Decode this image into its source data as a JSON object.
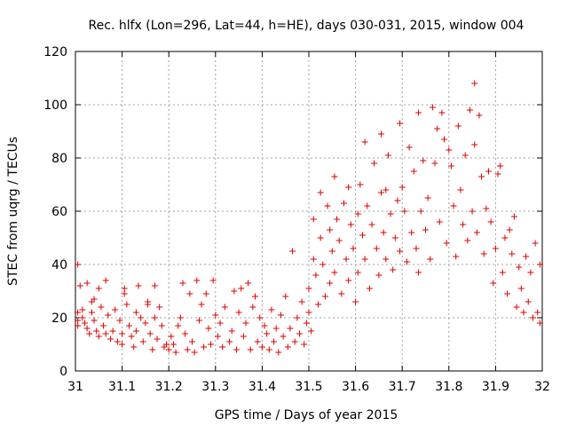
{
  "chart_data": {
    "type": "scatter",
    "title": "Rec. hlfx (Lon=296, Lat=44, h=HE), days 030-031, 2015, window 004",
    "xlabel": "GPS time / Days of year 2015",
    "ylabel": "STEC from uqrg / TECUs",
    "xlim": [
      31,
      32
    ],
    "ylim": [
      0,
      120
    ],
    "xticks": [
      "31",
      "31.1",
      "31.2",
      "31.3",
      "31.4",
      "31.5",
      "31.6",
      "31.7",
      "31.8",
      "31.9",
      "32"
    ],
    "yticks": [
      "0",
      "20",
      "40",
      "60",
      "80",
      "100",
      "120"
    ],
    "grid": true,
    "marker": "plus",
    "color": "#e00000",
    "points": [
      [
        31.005,
        40
      ],
      [
        31.005,
        22
      ],
      [
        31.005,
        19
      ],
      [
        31.005,
        17
      ],
      [
        31.01,
        32
      ],
      [
        31.015,
        23
      ],
      [
        31.015,
        20
      ],
      [
        31.02,
        18
      ],
      [
        31.025,
        33
      ],
      [
        31.025,
        16
      ],
      [
        31.03,
        14
      ],
      [
        31.035,
        26
      ],
      [
        31.035,
        22
      ],
      [
        31.04,
        27
      ],
      [
        31.04,
        19
      ],
      [
        31.045,
        15
      ],
      [
        31.05,
        31
      ],
      [
        31.05,
        13
      ],
      [
        31.055,
        24
      ],
      [
        31.06,
        17
      ],
      [
        31.065,
        34
      ],
      [
        31.065,
        14
      ],
      [
        31.07,
        21
      ],
      [
        31.075,
        12
      ],
      [
        31.08,
        15
      ],
      [
        31.085,
        23
      ],
      [
        31.09,
        11
      ],
      [
        31.095,
        19
      ],
      [
        31.1,
        14
      ],
      [
        31.1,
        10
      ],
      [
        31.105,
        31
      ],
      [
        31.105,
        29
      ],
      [
        31.11,
        25
      ],
      [
        31.115,
        17
      ],
      [
        31.12,
        13
      ],
      [
        31.125,
        9
      ],
      [
        31.13,
        22
      ],
      [
        31.13,
        15
      ],
      [
        31.135,
        32
      ],
      [
        31.14,
        20
      ],
      [
        31.145,
        11
      ],
      [
        31.15,
        18
      ],
      [
        31.155,
        26
      ],
      [
        31.155,
        25
      ],
      [
        31.16,
        14
      ],
      [
        31.165,
        8
      ],
      [
        31.17,
        32
      ],
      [
        31.17,
        20
      ],
      [
        31.175,
        12
      ],
      [
        31.18,
        24
      ],
      [
        31.185,
        17
      ],
      [
        31.19,
        9
      ],
      [
        31.195,
        10
      ],
      [
        31.2,
        8
      ],
      [
        31.205,
        13
      ],
      [
        31.21,
        10
      ],
      [
        31.215,
        7
      ],
      [
        31.22,
        17
      ],
      [
        31.225,
        20
      ],
      [
        31.23,
        33
      ],
      [
        31.235,
        14
      ],
      [
        31.24,
        8
      ],
      [
        31.245,
        29
      ],
      [
        31.25,
        11
      ],
      [
        31.255,
        7
      ],
      [
        31.26,
        34
      ],
      [
        31.265,
        19
      ],
      [
        31.27,
        25
      ],
      [
        31.275,
        9
      ],
      [
        31.28,
        29
      ],
      [
        31.285,
        16
      ],
      [
        31.29,
        10
      ],
      [
        31.295,
        34
      ],
      [
        31.3,
        21
      ],
      [
        31.305,
        13
      ],
      [
        31.31,
        18
      ],
      [
        31.315,
        9
      ],
      [
        31.32,
        24
      ],
      [
        31.33,
        11
      ],
      [
        31.335,
        15
      ],
      [
        31.34,
        30
      ],
      [
        31.345,
        8
      ],
      [
        31.35,
        22
      ],
      [
        31.355,
        31
      ],
      [
        31.36,
        13
      ],
      [
        31.365,
        18
      ],
      [
        31.37,
        33
      ],
      [
        31.375,
        8
      ],
      [
        31.38,
        24
      ],
      [
        31.385,
        28
      ],
      [
        31.39,
        11
      ],
      [
        31.395,
        20
      ],
      [
        31.4,
        9
      ],
      [
        31.405,
        17
      ],
      [
        31.41,
        14
      ],
      [
        31.415,
        8
      ],
      [
        31.42,
        23
      ],
      [
        31.425,
        11
      ],
      [
        31.43,
        16
      ],
      [
        31.435,
        7
      ],
      [
        31.44,
        21
      ],
      [
        31.445,
        13
      ],
      [
        31.45,
        28
      ],
      [
        31.455,
        9
      ],
      [
        31.46,
        16
      ],
      [
        31.465,
        45
      ],
      [
        31.47,
        11
      ],
      [
        31.475,
        20
      ],
      [
        31.48,
        14
      ],
      [
        31.485,
        26
      ],
      [
        31.49,
        10
      ],
      [
        31.495,
        18
      ],
      [
        31.5,
        31
      ],
      [
        31.5,
        22
      ],
      [
        31.505,
        15
      ],
      [
        31.51,
        57
      ],
      [
        31.51,
        42
      ],
      [
        31.515,
        36
      ],
      [
        31.52,
        25
      ],
      [
        31.525,
        67
      ],
      [
        31.525,
        50
      ],
      [
        31.53,
        40
      ],
      [
        31.535,
        28
      ],
      [
        31.54,
        62
      ],
      [
        31.545,
        53
      ],
      [
        31.545,
        33
      ],
      [
        31.55,
        45
      ],
      [
        31.555,
        73
      ],
      [
        31.555,
        37
      ],
      [
        31.56,
        57
      ],
      [
        31.565,
        49
      ],
      [
        31.57,
        29
      ],
      [
        31.575,
        63
      ],
      [
        31.58,
        42
      ],
      [
        31.585,
        69
      ],
      [
        31.585,
        34
      ],
      [
        31.59,
        55
      ],
      [
        31.595,
        46
      ],
      [
        31.6,
        26
      ],
      [
        31.605,
        59
      ],
      [
        31.605,
        37
      ],
      [
        31.61,
        70
      ],
      [
        31.615,
        51
      ],
      [
        31.62,
        42
      ],
      [
        31.62,
        86
      ],
      [
        31.625,
        62
      ],
      [
        31.63,
        31
      ],
      [
        31.635,
        55
      ],
      [
        31.64,
        78
      ],
      [
        31.645,
        46
      ],
      [
        31.65,
        36
      ],
      [
        31.655,
        89
      ],
      [
        31.655,
        67
      ],
      [
        31.66,
        52
      ],
      [
        31.665,
        68
      ],
      [
        31.665,
        42
      ],
      [
        31.67,
        81
      ],
      [
        31.675,
        59
      ],
      [
        31.68,
        38
      ],
      [
        31.685,
        50
      ],
      [
        31.69,
        64
      ],
      [
        31.695,
        93
      ],
      [
        31.695,
        45
      ],
      [
        31.7,
        69
      ],
      [
        31.705,
        60
      ],
      [
        31.71,
        41
      ],
      [
        31.715,
        84
      ],
      [
        31.72,
        52
      ],
      [
        31.725,
        75
      ],
      [
        31.73,
        46
      ],
      [
        31.735,
        97
      ],
      [
        31.735,
        37
      ],
      [
        31.74,
        60
      ],
      [
        31.745,
        79
      ],
      [
        31.75,
        53
      ],
      [
        31.755,
        65
      ],
      [
        31.76,
        42
      ],
      [
        31.765,
        99
      ],
      [
        31.77,
        78
      ],
      [
        31.775,
        91
      ],
      [
        31.78,
        56
      ],
      [
        31.785,
        97
      ],
      [
        31.79,
        87
      ],
      [
        31.795,
        48
      ],
      [
        31.8,
        83
      ],
      [
        31.805,
        77
      ],
      [
        31.81,
        62
      ],
      [
        31.815,
        43
      ],
      [
        31.82,
        92
      ],
      [
        31.825,
        68
      ],
      [
        31.83,
        55
      ],
      [
        31.835,
        81
      ],
      [
        31.84,
        49
      ],
      [
        31.845,
        98
      ],
      [
        31.85,
        60
      ],
      [
        31.855,
        108
      ],
      [
        31.855,
        85
      ],
      [
        31.86,
        52
      ],
      [
        31.865,
        96
      ],
      [
        31.87,
        73
      ],
      [
        31.875,
        44
      ],
      [
        31.88,
        61
      ],
      [
        31.885,
        75
      ],
      [
        31.89,
        56
      ],
      [
        31.895,
        33
      ],
      [
        31.9,
        46
      ],
      [
        31.905,
        74
      ],
      [
        31.91,
        77
      ],
      [
        31.915,
        37
      ],
      [
        31.92,
        50
      ],
      [
        31.925,
        29
      ],
      [
        31.93,
        53
      ],
      [
        31.935,
        44
      ],
      [
        31.94,
        58
      ],
      [
        31.945,
        24
      ],
      [
        31.95,
        39
      ],
      [
        31.955,
        31
      ],
      [
        31.96,
        22
      ],
      [
        31.965,
        43
      ],
      [
        31.97,
        26
      ],
      [
        31.975,
        37
      ],
      [
        31.98,
        20
      ],
      [
        31.985,
        48
      ],
      [
        31.99,
        22
      ],
      [
        31.995,
        40
      ],
      [
        31.995,
        18
      ]
    ]
  }
}
